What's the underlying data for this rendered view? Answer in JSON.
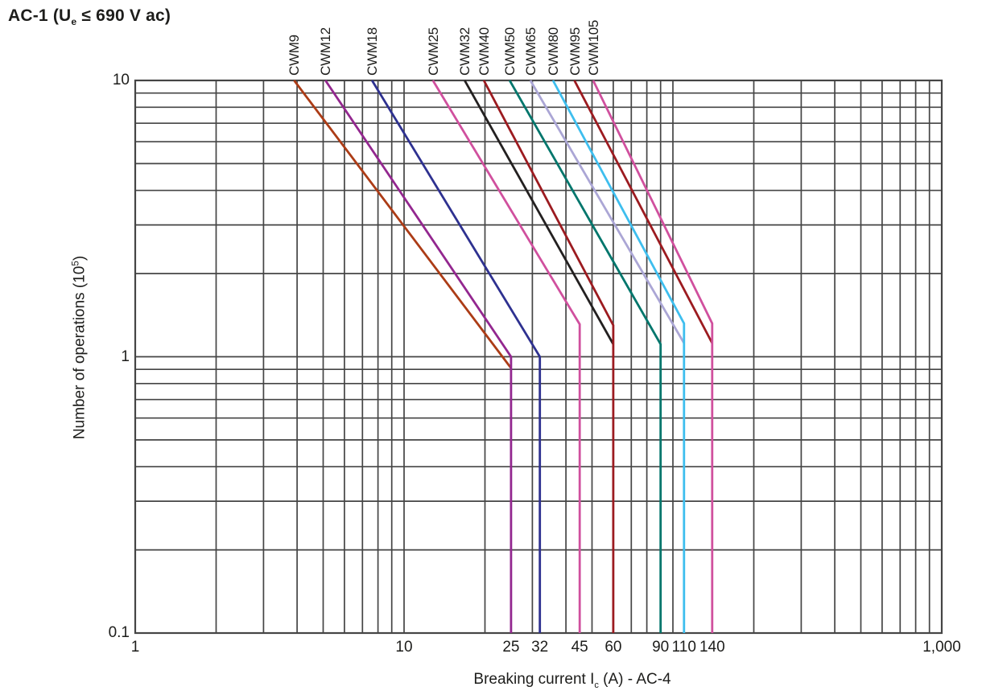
{
  "title": {
    "pre": "AC-1 (U",
    "sub": "e",
    "post": " ≤ 690 V ac)"
  },
  "colors": {
    "background": "#FFFFFF",
    "grid": "#454545",
    "text": "#1D1D1B"
  },
  "chart_data": {
    "type": "line",
    "x_scale": "log",
    "y_scale": "log",
    "xlim": [
      1,
      1000
    ],
    "ylim": [
      0.1,
      10
    ],
    "grid": "log major+minor, both axes",
    "legend_position": "labels rotated above each curve start",
    "xlabel": {
      "pre": "Breaking current I",
      "sub": "c",
      "post": " (A) - AC-4"
    },
    "ylabel": {
      "pre": "Number of operations (10",
      "sup": "5",
      "post": ")"
    },
    "x_ticks": [
      {
        "value": 1,
        "label": "1"
      },
      {
        "value": 10,
        "label": "10"
      },
      {
        "value": 25,
        "label": "25"
      },
      {
        "value": 32,
        "label": "32"
      },
      {
        "value": 45,
        "label": "45"
      },
      {
        "value": 60,
        "label": "60"
      },
      {
        "value": 90,
        "label": "90"
      },
      {
        "value": 110,
        "label": "110"
      },
      {
        "value": 140,
        "label": "140"
      },
      {
        "value": 1000,
        "label": "1,000"
      }
    ],
    "y_ticks": [
      {
        "value": 10,
        "label": "10"
      },
      {
        "value": 1,
        "label": "1"
      },
      {
        "value": 0.1,
        "label": "0.1"
      }
    ],
    "series": [
      {
        "name": "CWM9",
        "color": "#AC3C16",
        "points": [
          [
            3.9,
            10
          ],
          [
            25,
            0.91
          ]
        ]
      },
      {
        "name": "CWM12",
        "color": "#93278F",
        "points": [
          [
            5.1,
            10
          ],
          [
            25,
            1.0
          ],
          [
            25,
            0.1
          ]
        ]
      },
      {
        "name": "CWM18",
        "color": "#2E3190",
        "points": [
          [
            7.6,
            10
          ],
          [
            32,
            1.0
          ],
          [
            32,
            0.1
          ]
        ]
      },
      {
        "name": "CWM25",
        "color": "#D0509E",
        "points": [
          [
            12.8,
            10
          ],
          [
            45,
            1.31
          ],
          [
            45,
            0.1
          ]
        ]
      },
      {
        "name": "CWM32",
        "color": "#232020",
        "points": [
          [
            16.8,
            10
          ],
          [
            60,
            1.11
          ]
        ]
      },
      {
        "name": "CWM40",
        "color": "#9C1B20",
        "points": [
          [
            19.8,
            10
          ],
          [
            60,
            1.3
          ],
          [
            60,
            0.1
          ]
        ]
      },
      {
        "name": "CWM50",
        "color": "#00766C",
        "points": [
          [
            24.7,
            10
          ],
          [
            90,
            1.11
          ],
          [
            90,
            0.1
          ]
        ]
      },
      {
        "name": "CWM65",
        "color": "#ABA6D5",
        "points": [
          [
            29.5,
            10
          ],
          [
            110,
            1.12
          ]
        ]
      },
      {
        "name": "CWM80",
        "color": "#3EBEEE",
        "points": [
          [
            35.8,
            10
          ],
          [
            110,
            1.32
          ],
          [
            110,
            0.1
          ]
        ]
      },
      {
        "name": "CWM95",
        "color": "#9C1B20",
        "points": [
          [
            43,
            10
          ],
          [
            140,
            1.12
          ]
        ]
      },
      {
        "name": "CWM105",
        "color": "#D0509E",
        "points": [
          [
            50.5,
            10
          ],
          [
            140,
            1.32
          ],
          [
            140,
            0.1
          ]
        ]
      }
    ]
  }
}
